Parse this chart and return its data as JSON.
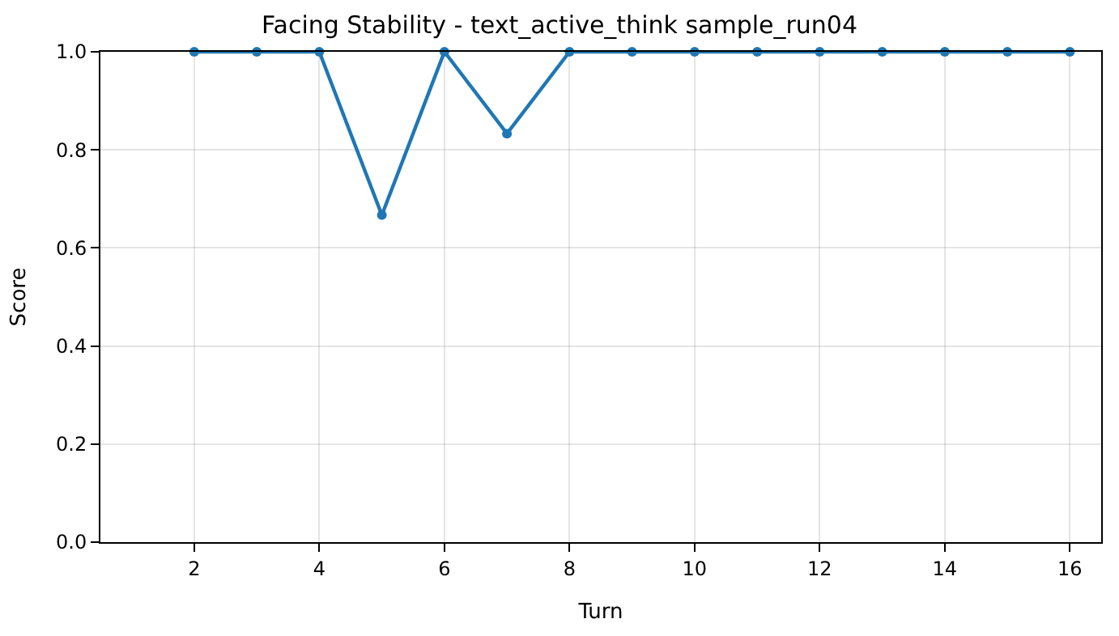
{
  "chart_data": {
    "type": "line",
    "title": "Facing Stability - text_active_think sample_run04",
    "xlabel": "Turn",
    "ylabel": "Score",
    "x": [
      2,
      3,
      4,
      5,
      6,
      7,
      8,
      9,
      10,
      11,
      12,
      13,
      14,
      15,
      16
    ],
    "series": [
      {
        "color": "#1f77b4",
        "values": [
          1,
          1,
          1,
          0.667,
          1,
          0.833,
          1,
          1,
          1,
          1,
          1,
          1,
          1,
          1,
          1
        ]
      }
    ],
    "xlim": [
      0.5,
      16.5
    ],
    "xticks": [
      2,
      4,
      6,
      8,
      10,
      12,
      14,
      16
    ],
    "ylim": [
      0,
      1
    ],
    "yticks": [
      {
        "value": 0,
        "label": "0.0"
      },
      {
        "value": 0.2,
        "label": "0.2"
      },
      {
        "value": 0.4,
        "label": "0.4"
      },
      {
        "value": 0.6,
        "label": "0.6"
      },
      {
        "value": 0.8,
        "label": "0.8"
      },
      {
        "value": 1,
        "label": "1.0"
      }
    ],
    "grid": true,
    "marker": "circle",
    "line_style": "solid",
    "legend": false
  }
}
